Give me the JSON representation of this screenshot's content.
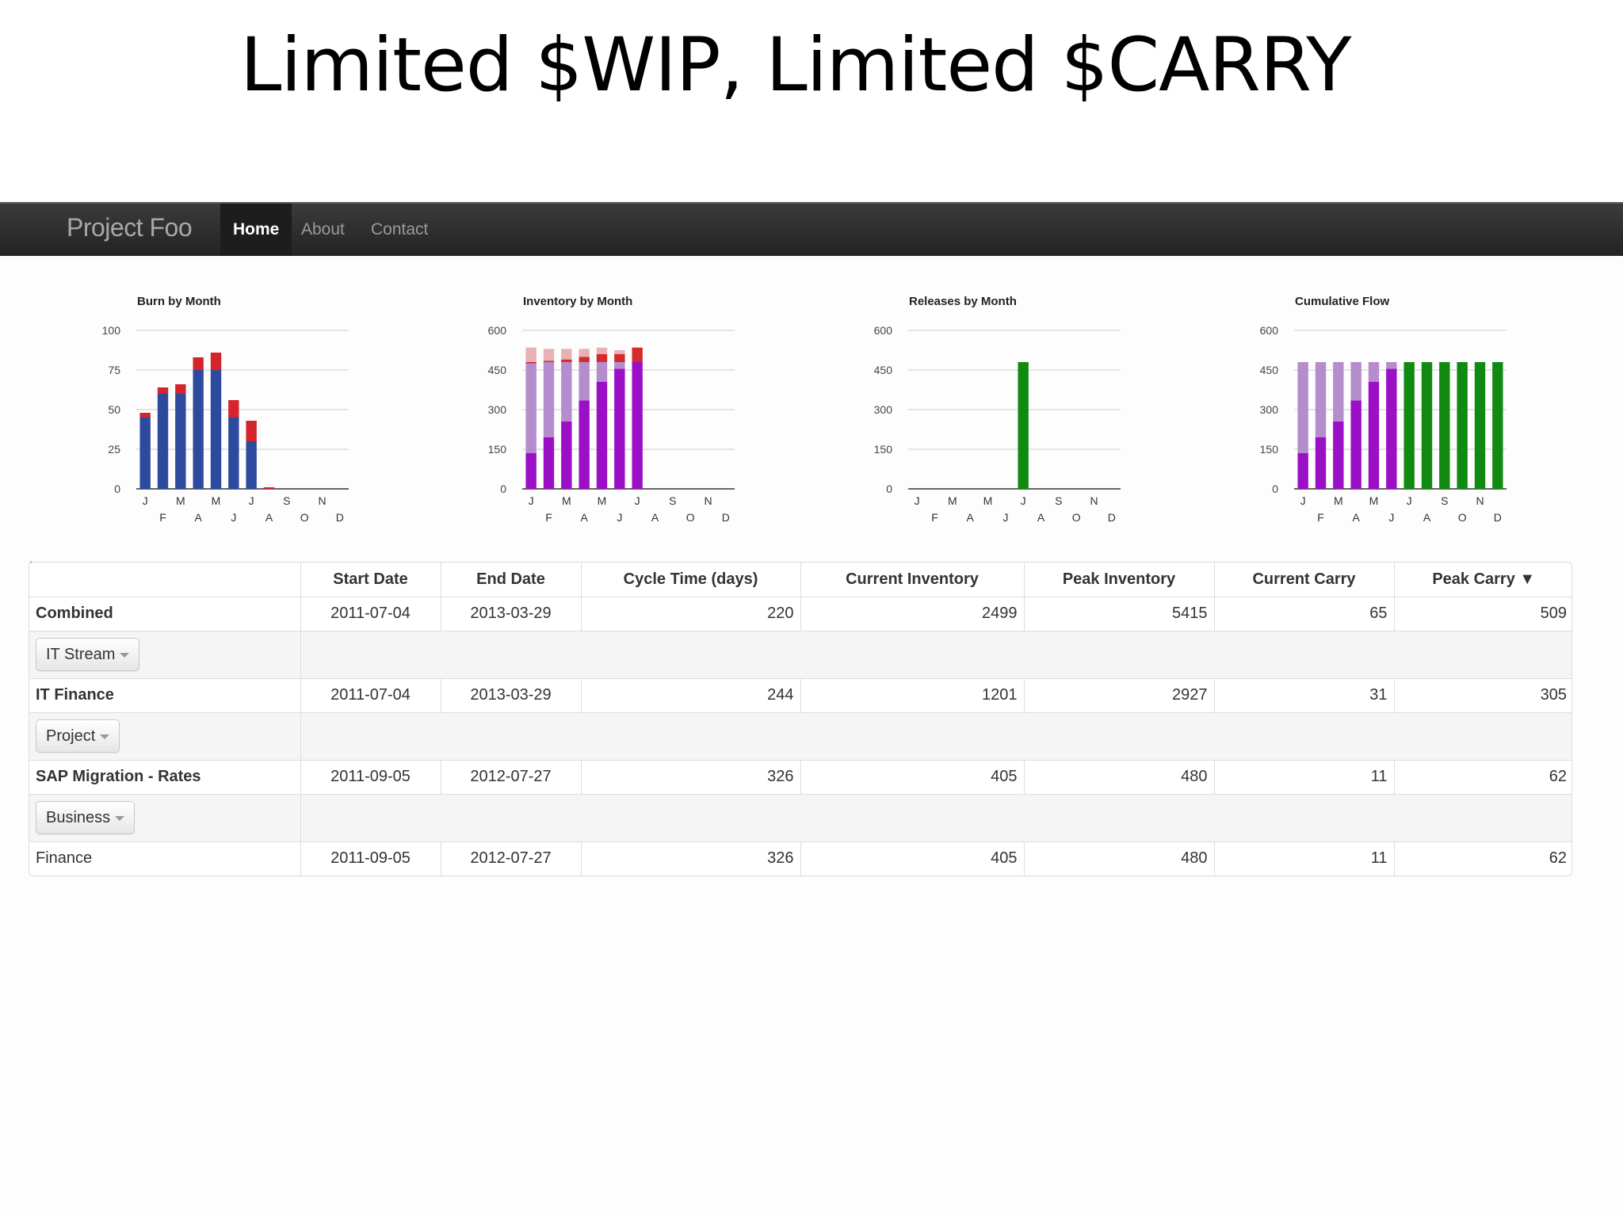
{
  "slide": {
    "title": "Limited $WIP, Limited $CARRY"
  },
  "navbar": {
    "brand": "Project Foo",
    "items": [
      {
        "label": "Home",
        "active": true
      },
      {
        "label": "About",
        "active": false
      },
      {
        "label": "Contact",
        "active": false
      }
    ]
  },
  "footnote": ".",
  "chart_data": [
    {
      "type": "bar",
      "title": "Burn by Month",
      "stacked": true,
      "ylim": [
        0,
        100
      ],
      "yticks": [
        0,
        25,
        50,
        75,
        100
      ],
      "categories": [
        "J",
        "F",
        "M",
        "A",
        "M",
        "J",
        "J",
        "A",
        "S",
        "O",
        "N",
        "D"
      ],
      "series": [
        {
          "color": "#2e4a9e",
          "values": [
            45,
            60,
            60,
            75,
            75,
            45,
            30,
            0,
            0,
            0,
            0,
            0
          ]
        },
        {
          "color": "#d4242c",
          "values": [
            3,
            4,
            6,
            8,
            11,
            11,
            13,
            1,
            0,
            0,
            0,
            0
          ]
        }
      ]
    },
    {
      "type": "bar",
      "title": "Inventory by Month",
      "stacked": true,
      "ylim": [
        0,
        600
      ],
      "yticks": [
        0,
        150,
        300,
        450,
        600
      ],
      "categories": [
        "J",
        "F",
        "M",
        "A",
        "M",
        "J",
        "J",
        "A",
        "S",
        "O",
        "N",
        "D"
      ],
      "series": [
        {
          "color": "#9b0fc6",
          "values": [
            135,
            195,
            255,
            335,
            405,
            455,
            480,
            0,
            0,
            0,
            0,
            0
          ]
        },
        {
          "color": "#b58ccc",
          "values": [
            340,
            285,
            225,
            145,
            75,
            25,
            0,
            0,
            0,
            0,
            0,
            0
          ]
        },
        {
          "color": "#d52b2c",
          "values": [
            5,
            5,
            10,
            20,
            30,
            30,
            55,
            0,
            0,
            0,
            0,
            0
          ]
        },
        {
          "color": "#e8b2b4",
          "values": [
            55,
            45,
            40,
            30,
            25,
            15,
            0,
            0,
            0,
            0,
            0,
            0
          ]
        }
      ]
    },
    {
      "type": "bar",
      "title": "Releases by Month",
      "stacked": true,
      "ylim": [
        0,
        600
      ],
      "yticks": [
        0,
        150,
        300,
        450,
        600
      ],
      "categories": [
        "J",
        "F",
        "M",
        "A",
        "M",
        "J",
        "J",
        "A",
        "S",
        "O",
        "N",
        "D"
      ],
      "series": [
        {
          "color": "#118a11",
          "values": [
            0,
            0,
            0,
            0,
            0,
            0,
            480,
            0,
            0,
            0,
            0,
            0
          ]
        }
      ]
    },
    {
      "type": "bar",
      "title": "Cumulative Flow",
      "stacked": true,
      "ylim": [
        0,
        600
      ],
      "yticks": [
        0,
        150,
        300,
        450,
        600
      ],
      "categories": [
        "J",
        "F",
        "M",
        "A",
        "M",
        "J",
        "J",
        "A",
        "S",
        "O",
        "N",
        "D"
      ],
      "series": [
        {
          "color": "#9b0fc6",
          "values": [
            135,
            195,
            255,
            335,
            405,
            455,
            0,
            0,
            0,
            0,
            0,
            0
          ]
        },
        {
          "color": "#b58ccc",
          "values": [
            345,
            285,
            225,
            145,
            75,
            25,
            0,
            0,
            0,
            0,
            0,
            0
          ]
        },
        {
          "color": "#118a11",
          "values": [
            0,
            0,
            0,
            0,
            0,
            0,
            480,
            480,
            480,
            480,
            480,
            480
          ]
        }
      ]
    }
  ],
  "table": {
    "headers": [
      "",
      "Start Date",
      "End Date",
      "Cycle Time (days)",
      "Current Inventory",
      "Peak Inventory",
      "Current Carry",
      "Peak Carry ▼"
    ],
    "rows": {
      "combined": {
        "name": "Combined",
        "start": "2011-07-04",
        "end": "2013-03-29",
        "cycle": "220",
        "cur_inv": "2499",
        "peak_inv": "5415",
        "cur_carry": "65",
        "peak_carry": "509"
      },
      "group1": {
        "label": "IT Stream"
      },
      "it_finance": {
        "name": "IT Finance",
        "start": "2011-07-04",
        "end": "2013-03-29",
        "cycle": "244",
        "cur_inv": "1201",
        "peak_inv": "2927",
        "cur_carry": "31",
        "peak_carry": "305"
      },
      "group2": {
        "label": "Project"
      },
      "sap": {
        "name": "SAP Migration - Rates",
        "start": "2011-09-05",
        "end": "2012-07-27",
        "cycle": "326",
        "cur_inv": "405",
        "peak_inv": "480",
        "cur_carry": "11",
        "peak_carry": "62"
      },
      "group3": {
        "label": "Business"
      },
      "finance": {
        "name": "Finance",
        "start": "2011-09-05",
        "end": "2012-07-27",
        "cycle": "326",
        "cur_inv": "405",
        "peak_inv": "480",
        "cur_carry": "11",
        "peak_carry": "62"
      }
    }
  }
}
